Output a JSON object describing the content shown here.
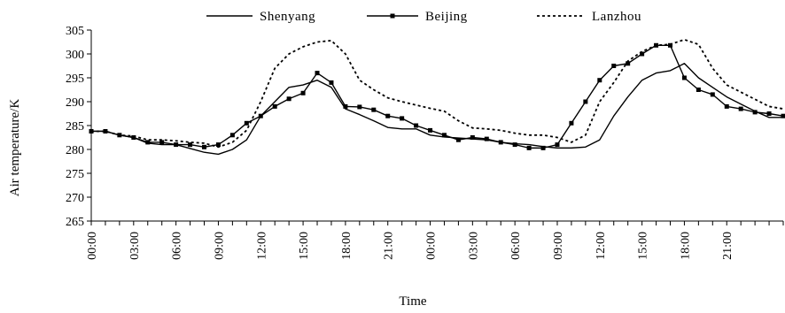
{
  "chart_data": {
    "type": "line",
    "title": "",
    "xlabel": "Time",
    "ylabel": "Air temperature/K",
    "ylim": [
      265,
      305
    ],
    "yticks": [
      265,
      270,
      275,
      280,
      285,
      290,
      295,
      300,
      305
    ],
    "x_tick_labels": [
      "00:00",
      "03:00",
      "06:00",
      "09:00",
      "12:00",
      "15:00",
      "18:00",
      "21:00",
      "00:00",
      "03:00",
      "06:00",
      "09:00",
      "12:00",
      "15:00",
      "18:00",
      "21:00"
    ],
    "legend_position": "top",
    "grid": false,
    "series": [
      {
        "name": "Shenyang",
        "style": "solid",
        "color": "#000000",
        "values": [
          283.8,
          283.8,
          283.0,
          282.5,
          281.3,
          281.0,
          281.0,
          280.2,
          279.4,
          279.0,
          280.0,
          282.0,
          287.0,
          290.0,
          293.0,
          293.5,
          294.5,
          293.0,
          288.5,
          287.3,
          286.0,
          284.6,
          284.3,
          284.3,
          283.0,
          282.6,
          282.4,
          282.2,
          282.0,
          281.5,
          281.2,
          281.0,
          280.6,
          280.3,
          280.3,
          280.5,
          282.0,
          287.0,
          291.0,
          294.5,
          296.0,
          296.5,
          298.0,
          295.0,
          293.0,
          291.0,
          289.5,
          288.0,
          286.7,
          286.7
        ]
      },
      {
        "name": "Beijing",
        "style": "solid-square-markers",
        "color": "#000000",
        "values": [
          283.8,
          283.8,
          283.0,
          282.5,
          281.5,
          281.5,
          281.0,
          281.0,
          280.5,
          281.0,
          283.0,
          285.5,
          287.0,
          289.0,
          290.6,
          291.8,
          296.0,
          294.0,
          289.0,
          288.9,
          288.3,
          287.0,
          286.5,
          285.0,
          284.0,
          283.0,
          282.0,
          282.5,
          282.2,
          281.5,
          281.0,
          280.3,
          280.3,
          281.0,
          285.5,
          290.0,
          294.5,
          297.5,
          298.0,
          300.0,
          301.8,
          301.8,
          295.0,
          292.5,
          291.5,
          289.0,
          288.5,
          287.8,
          287.5,
          287.0
        ]
      },
      {
        "name": "Lanzhou",
        "style": "dashed",
        "color": "#000000",
        "values": [
          283.8,
          283.8,
          283.0,
          282.8,
          282.0,
          282.0,
          281.8,
          281.5,
          281.3,
          280.5,
          281.5,
          284.0,
          290.0,
          297.0,
          300.0,
          301.5,
          302.5,
          302.8,
          300.0,
          294.5,
          292.5,
          290.8,
          290.0,
          289.3,
          288.6,
          288.0,
          286.0,
          284.5,
          284.3,
          284.0,
          283.4,
          283.0,
          283.0,
          282.5,
          281.5,
          283.0,
          290.0,
          294.0,
          298.5,
          300.5,
          301.8,
          302.0,
          303.0,
          302.0,
          297.0,
          293.5,
          292.0,
          290.5,
          289.0,
          288.5
        ]
      }
    ]
  }
}
